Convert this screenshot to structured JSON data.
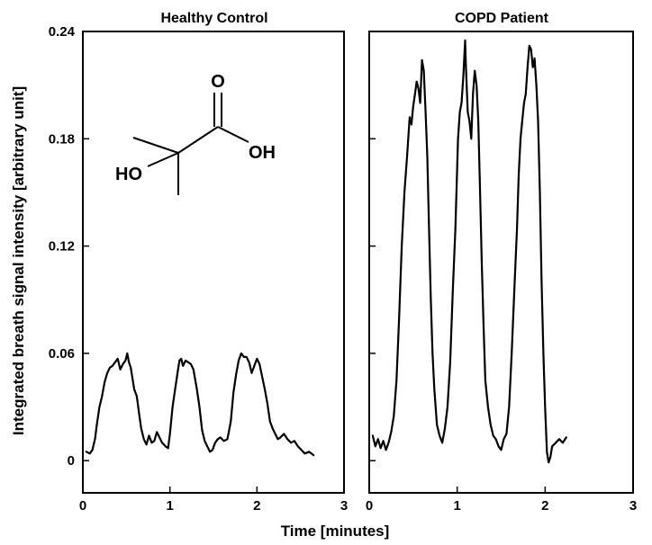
{
  "chart_data": [
    {
      "type": "line",
      "title": "Healthy Control",
      "xlabel": "Time [minutes]",
      "ylabel": "Integrated breath signal intensity [arbitrary unit]",
      "xlim": [
        0,
        3
      ],
      "ylim": [
        -0.018,
        0.24
      ],
      "x_ticks": [
        "0",
        "1",
        "2",
        "3"
      ],
      "y_ticks": [
        "0",
        "0.06",
        "0.12",
        "0.18",
        "0.24"
      ],
      "series": [
        {
          "x": [
            0.04,
            0.08,
            0.11,
            0.14,
            0.16,
            0.19,
            0.22,
            0.25,
            0.28,
            0.31,
            0.34,
            0.37,
            0.4,
            0.43,
            0.46,
            0.49,
            0.51,
            0.53,
            0.55,
            0.57,
            0.59,
            0.62,
            0.65,
            0.67,
            0.7,
            0.73,
            0.76,
            0.79,
            0.82,
            0.85,
            0.88,
            0.91,
            0.95,
            0.98,
            1.0,
            1.03,
            1.06,
            1.09,
            1.11,
            1.13,
            1.15,
            1.18,
            1.21,
            1.24,
            1.27,
            1.31,
            1.34,
            1.37,
            1.4,
            1.43,
            1.46,
            1.49,
            1.52,
            1.55,
            1.58,
            1.62,
            1.66,
            1.7,
            1.73,
            1.76,
            1.79,
            1.82,
            1.85,
            1.88,
            1.91,
            1.94,
            1.97,
            2.0,
            2.03,
            2.06,
            2.09,
            2.12,
            2.15,
            2.18,
            2.21,
            2.24,
            2.27,
            2.31,
            2.35,
            2.39,
            2.43,
            2.47,
            2.51,
            2.55,
            2.6,
            2.65
          ],
          "y": [
            0.005,
            0.004,
            0.006,
            0.012,
            0.02,
            0.03,
            0.036,
            0.044,
            0.049,
            0.052,
            0.053,
            0.055,
            0.057,
            0.051,
            0.054,
            0.056,
            0.06,
            0.055,
            0.052,
            0.046,
            0.04,
            0.036,
            0.025,
            0.018,
            0.012,
            0.009,
            0.014,
            0.01,
            0.011,
            0.016,
            0.013,
            0.01,
            0.008,
            0.007,
            0.015,
            0.03,
            0.04,
            0.05,
            0.056,
            0.057,
            0.053,
            0.056,
            0.055,
            0.054,
            0.051,
            0.04,
            0.03,
            0.017,
            0.011,
            0.008,
            0.005,
            0.006,
            0.01,
            0.012,
            0.013,
            0.011,
            0.012,
            0.022,
            0.038,
            0.048,
            0.056,
            0.06,
            0.058,
            0.058,
            0.055,
            0.049,
            0.053,
            0.057,
            0.054,
            0.047,
            0.04,
            0.032,
            0.022,
            0.018,
            0.015,
            0.012,
            0.013,
            0.015,
            0.012,
            0.01,
            0.011,
            0.008,
            0.006,
            0.004,
            0.005,
            0.003
          ]
        }
      ]
    },
    {
      "type": "line",
      "title": "COPD Patient",
      "xlabel": "Time [minutes]",
      "ylabel": "",
      "xlim": [
        0,
        3
      ],
      "ylim": [
        -0.018,
        0.24
      ],
      "x_ticks": [
        "0",
        "1",
        "2",
        "3"
      ],
      "y_ticks": [
        "0",
        "0.06",
        "0.12",
        "0.18",
        "0.24"
      ],
      "series": [
        {
          "x": [
            0.04,
            0.07,
            0.1,
            0.13,
            0.16,
            0.19,
            0.22,
            0.25,
            0.28,
            0.31,
            0.34,
            0.37,
            0.4,
            0.43,
            0.46,
            0.48,
            0.5,
            0.52,
            0.54,
            0.56,
            0.58,
            0.6,
            0.62,
            0.64,
            0.66,
            0.68,
            0.7,
            0.72,
            0.74,
            0.77,
            0.8,
            0.83,
            0.86,
            0.89,
            0.92,
            0.95,
            0.98,
            1.01,
            1.03,
            1.05,
            1.07,
            1.09,
            1.1,
            1.12,
            1.14,
            1.16,
            1.18,
            1.2,
            1.22,
            1.24,
            1.26,
            1.28,
            1.3,
            1.32,
            1.35,
            1.38,
            1.41,
            1.44,
            1.47,
            1.5,
            1.53,
            1.56,
            1.59,
            1.62,
            1.65,
            1.68,
            1.7,
            1.72,
            1.74,
            1.76,
            1.78,
            1.8,
            1.82,
            1.84,
            1.86,
            1.88,
            1.9,
            1.92,
            1.94,
            1.96,
            1.98,
            2.0,
            2.02,
            2.04,
            2.06,
            2.08,
            2.12,
            2.16,
            2.2,
            2.24
          ],
          "y": [
            0.014,
            0.008,
            0.012,
            0.007,
            0.011,
            0.006,
            0.01,
            0.016,
            0.025,
            0.045,
            0.08,
            0.12,
            0.15,
            0.17,
            0.192,
            0.188,
            0.198,
            0.205,
            0.212,
            0.208,
            0.2,
            0.224,
            0.218,
            0.196,
            0.17,
            0.13,
            0.09,
            0.06,
            0.04,
            0.02,
            0.014,
            0.01,
            0.018,
            0.03,
            0.055,
            0.095,
            0.13,
            0.18,
            0.195,
            0.2,
            0.215,
            0.235,
            0.22,
            0.195,
            0.19,
            0.18,
            0.205,
            0.218,
            0.21,
            0.19,
            0.15,
            0.11,
            0.075,
            0.045,
            0.03,
            0.02,
            0.014,
            0.012,
            0.008,
            0.006,
            0.012,
            0.015,
            0.03,
            0.06,
            0.095,
            0.13,
            0.16,
            0.18,
            0.19,
            0.2,
            0.205,
            0.22,
            0.232,
            0.23,
            0.22,
            0.225,
            0.21,
            0.19,
            0.15,
            0.1,
            0.06,
            0.03,
            0.005,
            -0.001,
            0.002,
            0.008,
            0.01,
            0.012,
            0.01,
            0.013
          ]
        }
      ]
    }
  ],
  "molecule": {
    "labels": [
      "O",
      "OH",
      "HO"
    ]
  }
}
